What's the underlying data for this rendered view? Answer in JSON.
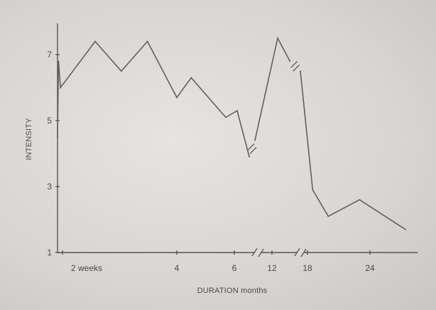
{
  "chart_data": {
    "type": "line",
    "ylabel": "INTENSITY",
    "xlabel": "DURATION months",
    "ylim": [
      1,
      8
    ],
    "yticks": [
      {
        "value": 1,
        "label": "1"
      },
      {
        "value": 3,
        "label": "3"
      },
      {
        "value": 5,
        "label": "5"
      },
      {
        "value": 7,
        "label": "7"
      }
    ],
    "xticks": [
      {
        "value": 0.5,
        "label": "2 weeks"
      },
      {
        "value": 4,
        "label": "4"
      },
      {
        "value": 6,
        "label": "6"
      },
      {
        "value": 12,
        "label": "12"
      },
      {
        "value": 18,
        "label": "18"
      },
      {
        "value": 24,
        "label": "24"
      }
    ],
    "x_axis_breaks": [
      8.5,
      15
    ],
    "line_breaks": [
      [
        7.6,
        8.2
      ],
      [
        13.9,
        15.0
      ]
    ],
    "series": [
      {
        "values": [
          {
            "x": 0.0,
            "y": 4.5
          },
          {
            "x": 0.1,
            "y": 6.8
          },
          {
            "x": 0.3,
            "y": 6.0
          },
          {
            "x": 1.5,
            "y": 7.4
          },
          {
            "x": 2.3,
            "y": 6.5
          },
          {
            "x": 3.1,
            "y": 7.4
          },
          {
            "x": 4.0,
            "y": 5.7
          },
          {
            "x": 4.5,
            "y": 6.3
          },
          {
            "x": 5.7,
            "y": 5.1
          },
          {
            "x": 6.3,
            "y": 5.3
          },
          {
            "x": 7.6,
            "y": 3.9
          },
          {
            "x": 8.2,
            "y": 4.4
          },
          {
            "x": 12.6,
            "y": 7.5
          },
          {
            "x": 13.9,
            "y": 6.8
          },
          {
            "x": 15.0,
            "y": 6.5
          },
          {
            "x": 18.5,
            "y": 2.9
          },
          {
            "x": 20.0,
            "y": 2.1
          },
          {
            "x": 23.0,
            "y": 2.6
          },
          {
            "x": 28.0,
            "y": 1.7
          }
        ]
      }
    ]
  }
}
